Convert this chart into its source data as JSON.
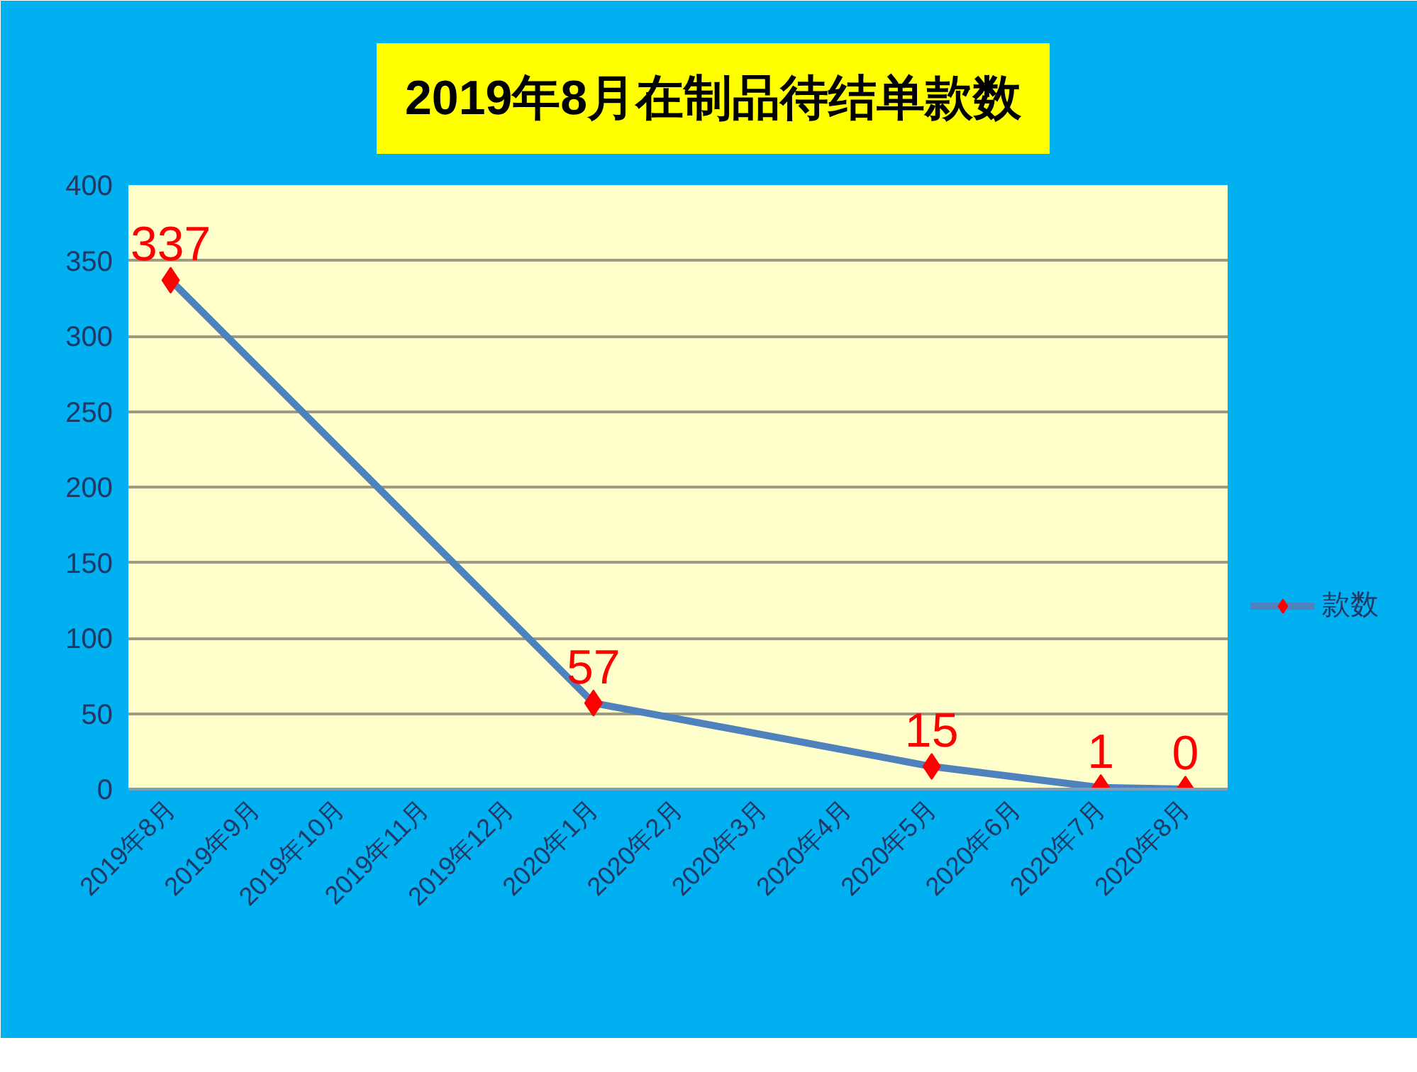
{
  "chart_data": {
    "type": "line",
    "title": "2019年8月在制品待结单款数",
    "categories": [
      "2019年8月",
      "2019年9月",
      "2019年10月",
      "2019年11月",
      "2019年12月",
      "2020年1月",
      "2020年2月",
      "2020年3月",
      "2020年4月",
      "2020年5月",
      "2020年6月",
      "2020年7月",
      "2020年8月"
    ],
    "series": [
      {
        "name": "款数",
        "color": "#4f81bd",
        "colors": [
          "#ff0000",
          "#ff0000",
          "#ff0000",
          "#ff0000",
          "#ff0000",
          "#ff0000",
          "#ff0000",
          "#ff0000",
          "#ff0000",
          "#ff0000",
          "#ff0000",
          "#ff0000",
          "#ff0000"
        ],
        "values": [
          337,
          null,
          null,
          null,
          null,
          57,
          null,
          null,
          null,
          15,
          null,
          1,
          0
        ]
      }
    ],
    "ylim": [
      0,
      400
    ],
    "yticks": [
      0,
      50,
      100,
      150,
      200,
      250,
      300,
      350,
      400
    ],
    "grid": "y",
    "legend": "right",
    "marker": "diamond",
    "data_labels": true
  }
}
